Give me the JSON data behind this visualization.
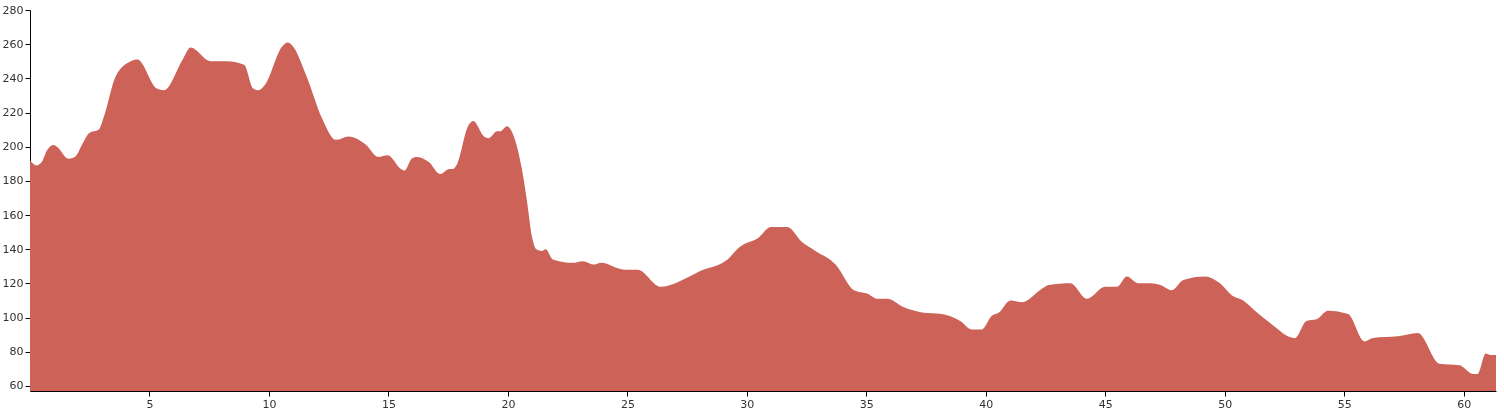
{
  "chart_data": {
    "type": "area",
    "x": [
      0,
      0.27,
      0.49,
      0.72,
      0.99,
      1.13,
      1.61,
      1.88,
      2.21,
      2.48,
      2.88,
      3.1,
      3.58,
      4.22,
      4.49,
      5.31,
      5.61,
      6.39,
      6.72,
      7.55,
      7.88,
      8.21,
      8.96,
      9.34,
      9.55,
      9.82,
      10.57,
      10.79,
      10.99,
      11.58,
      12.21,
      12.81,
      13.33,
      14.07,
      14.57,
      14.97,
      15.52,
      15.67,
      15.97,
      16.16,
      16.69,
      17.16,
      17.55,
      17.7,
      17.88,
      18.33,
      18.55,
      19.0,
      19.19,
      19.55,
      19.67,
      19.97,
      20.19,
      20.57,
      20.79,
      21.01,
      21.19,
      21.43,
      21.58,
      21.88,
      22.71,
      23.13,
      23.62,
      23.9,
      24.87,
      25.43,
      26.4,
      27.45,
      28.0,
      29.19,
      29.67,
      30.51,
      31.0,
      31.69,
      32.32,
      32.87,
      33.71,
      34.48,
      35.03,
      35.45,
      35.87,
      36.57,
      37.33,
      38.16,
      38.93,
      39.42,
      39.83,
      40.25,
      40.55,
      41.03,
      41.52,
      42.36,
      42.63,
      43.54,
      44.23,
      45.0,
      45.49,
      45.9,
      46.39,
      46.88,
      47.3,
      47.78,
      48.27,
      49.17,
      49.8,
      50.29,
      50.77,
      51.26,
      52.24,
      52.51,
      52.93,
      53.42,
      53.84,
      54.32,
      55.16,
      55.85,
      56.2,
      57.24,
      58.08,
      58.98,
      59.82,
      60.38,
      60.58,
      60.92,
      61.14,
      61.35
    ],
    "series": [
      {
        "color": "#cd6358",
        "values": [
          192,
          189,
          191,
          198,
          201,
          200,
          193,
          194,
          202,
          208,
          210,
          218,
          241,
          250,
          251,
          234,
          233,
          251,
          258,
          250,
          250,
          250,
          248,
          234,
          233,
          236,
          259,
          261,
          259,
          241,
          217,
          204,
          206,
          201,
          194,
          195,
          187,
          186,
          193,
          194,
          191,
          184,
          187,
          187,
          190,
          212,
          215,
          206,
          205,
          209,
          209,
          212,
          208,
          188,
          169,
          147,
          140,
          139,
          140,
          134,
          132,
          133,
          131,
          132,
          128,
          128,
          118,
          123,
          127,
          134,
          141,
          147,
          153,
          153,
          144,
          139,
          131,
          116,
          114,
          111,
          111,
          106,
          103,
          102,
          98,
          93,
          93,
          101,
          103,
          110,
          109,
          117,
          119,
          120,
          111,
          118,
          118,
          124,
          120,
          120,
          119,
          116,
          122,
          124,
          120,
          113,
          110,
          104,
          93,
          90,
          88,
          98,
          99,
          104,
          102,
          86,
          88,
          89,
          91,
          73,
          72,
          67,
          67,
          79,
          78,
          78
        ]
      }
    ],
    "xlim": [
      0,
      61.35
    ],
    "ylim": [
      57,
      280
    ],
    "xticks": [
      5,
      10,
      15,
      20,
      25,
      30,
      35,
      40,
      45,
      50,
      55,
      60
    ],
    "yticks": [
      60,
      80,
      100,
      120,
      140,
      160,
      180,
      200,
      220,
      240,
      260,
      280
    ],
    "grid": false
  }
}
